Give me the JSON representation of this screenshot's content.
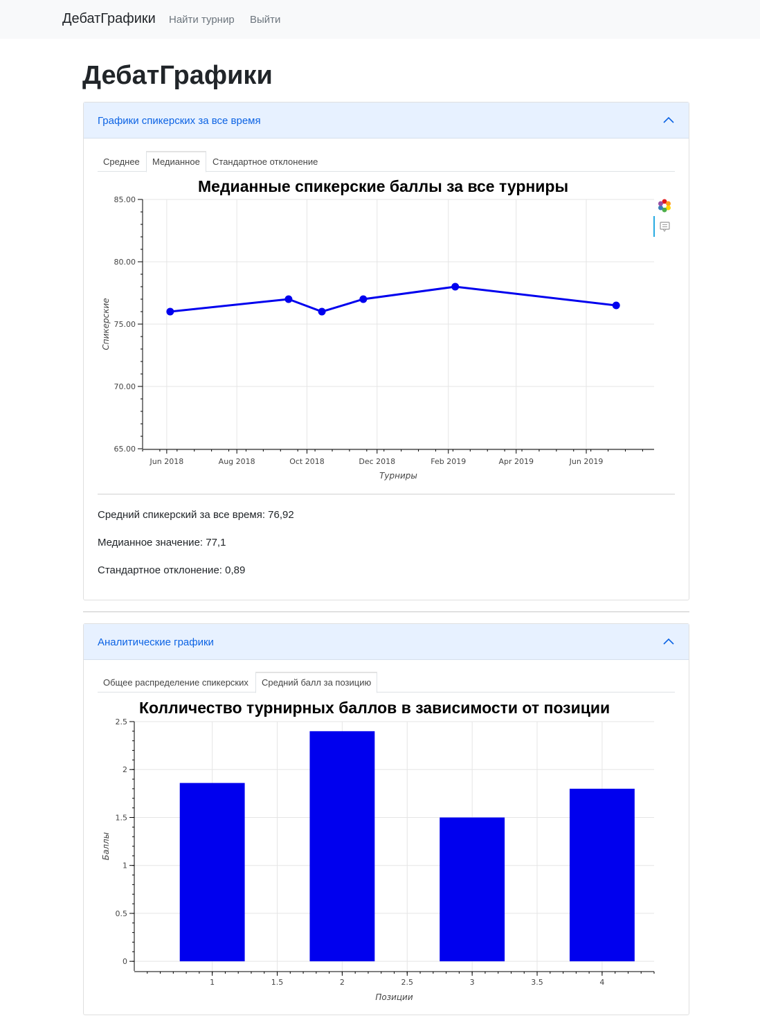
{
  "navbar": {
    "brand": "ДебатГрафики",
    "links": [
      "Найти турнир",
      "Выйти"
    ]
  },
  "page_title": "ДебатГрафики",
  "section1": {
    "header": "Графики спикерских за все время",
    "tabs": [
      "Среднее",
      "Медианное",
      "Стандартное отклонение"
    ],
    "active_tab": "Медианное",
    "stats": [
      "Средний спикерский за все время: 76,92",
      "Медианное значение: 77,1",
      "Стандартное отклонение: 0,89"
    ]
  },
  "section2": {
    "header": "Аналитические графики",
    "tabs": [
      "Общее распределение спикерских",
      "Средний балл за позицию"
    ],
    "active_tab": "Средний балл за позицию"
  },
  "colors": {
    "series": "#0000ee",
    "accent": "#0c63e4",
    "header_bg": "#e7f1ff"
  },
  "icons": {
    "chevron": "chevron-up-icon",
    "bokeh": "bokeh-logo-icon",
    "hover": "hover-tool-icon"
  },
  "chart_data": [
    {
      "type": "line",
      "title": "Медианные спикерские баллы за все турниры",
      "xlabel": "Турниры",
      "ylabel": "Спикерские",
      "x": [
        "2018-06-04",
        "2018-09-15",
        "2018-10-14",
        "2018-11-19",
        "2019-02-07",
        "2019-06-27"
      ],
      "y": [
        76.0,
        77.0,
        76.0,
        77.0,
        78.0,
        76.5
      ],
      "x_tick_labels": [
        "Jun 2018",
        "Aug 2018",
        "Oct 2018",
        "Dec 2018",
        "Feb 2019",
        "Apr 2019",
        "Jun 2019"
      ],
      "y_tick_labels": [
        "65.00",
        "70.00",
        "75.00",
        "80.00",
        "85.00"
      ],
      "ylim": [
        65,
        85
      ],
      "grid": true,
      "color": "#0000ee"
    },
    {
      "type": "bar",
      "title": "Колличество турнирных баллов в зависимости от позиции",
      "xlabel": "Позиции",
      "ylabel": "Баллы",
      "categories": [
        1,
        2,
        3,
        4
      ],
      "values": [
        1.86,
        2.4,
        1.5,
        1.8
      ],
      "x_tick_labels": [
        "1",
        "1.5",
        "2",
        "2.5",
        "3",
        "3.5",
        "4"
      ],
      "y_tick_labels": [
        "0",
        "0.5",
        "1",
        "1.5",
        "2",
        "2.5"
      ],
      "xlim": [
        0.4,
        4.4
      ],
      "ylim": [
        -0.1,
        2.5
      ],
      "grid": true,
      "color": "#0000ee"
    }
  ]
}
